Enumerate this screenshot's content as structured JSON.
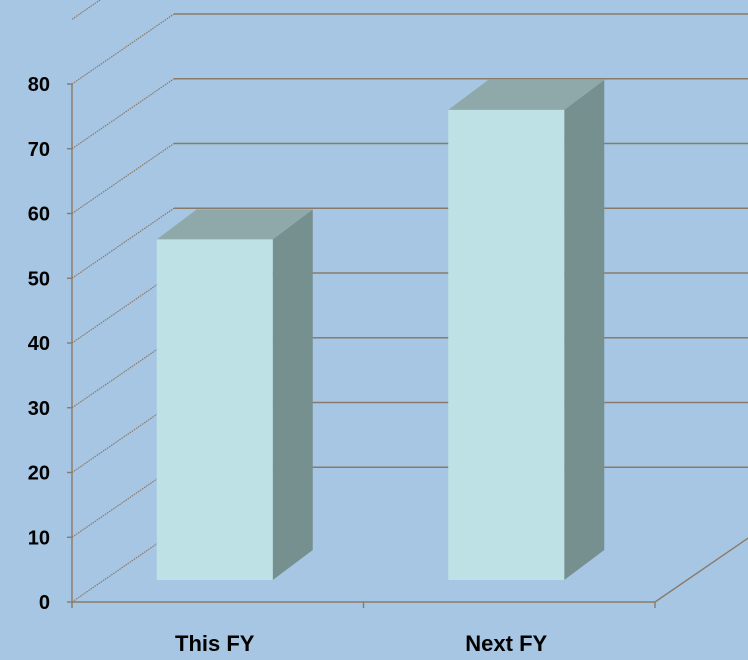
{
  "colors": {
    "background": "#a6c6e3",
    "bar_front": "#bde1e4",
    "bar_side": "#768f8f",
    "bar_top": "#8fa9aa",
    "grid": "#8a7a6a",
    "axis_text": "#000000"
  },
  "chart_data": {
    "type": "bar",
    "title": "",
    "xlabel": "",
    "ylabel": "",
    "categories": [
      "This FY",
      "Next FY"
    ],
    "values": [
      56,
      76
    ],
    "ylim": [
      0,
      80
    ],
    "yticks": [
      0,
      10,
      20,
      30,
      40,
      50,
      60,
      70,
      80
    ],
    "grid": true,
    "legend": "none",
    "style": "3d-column"
  }
}
